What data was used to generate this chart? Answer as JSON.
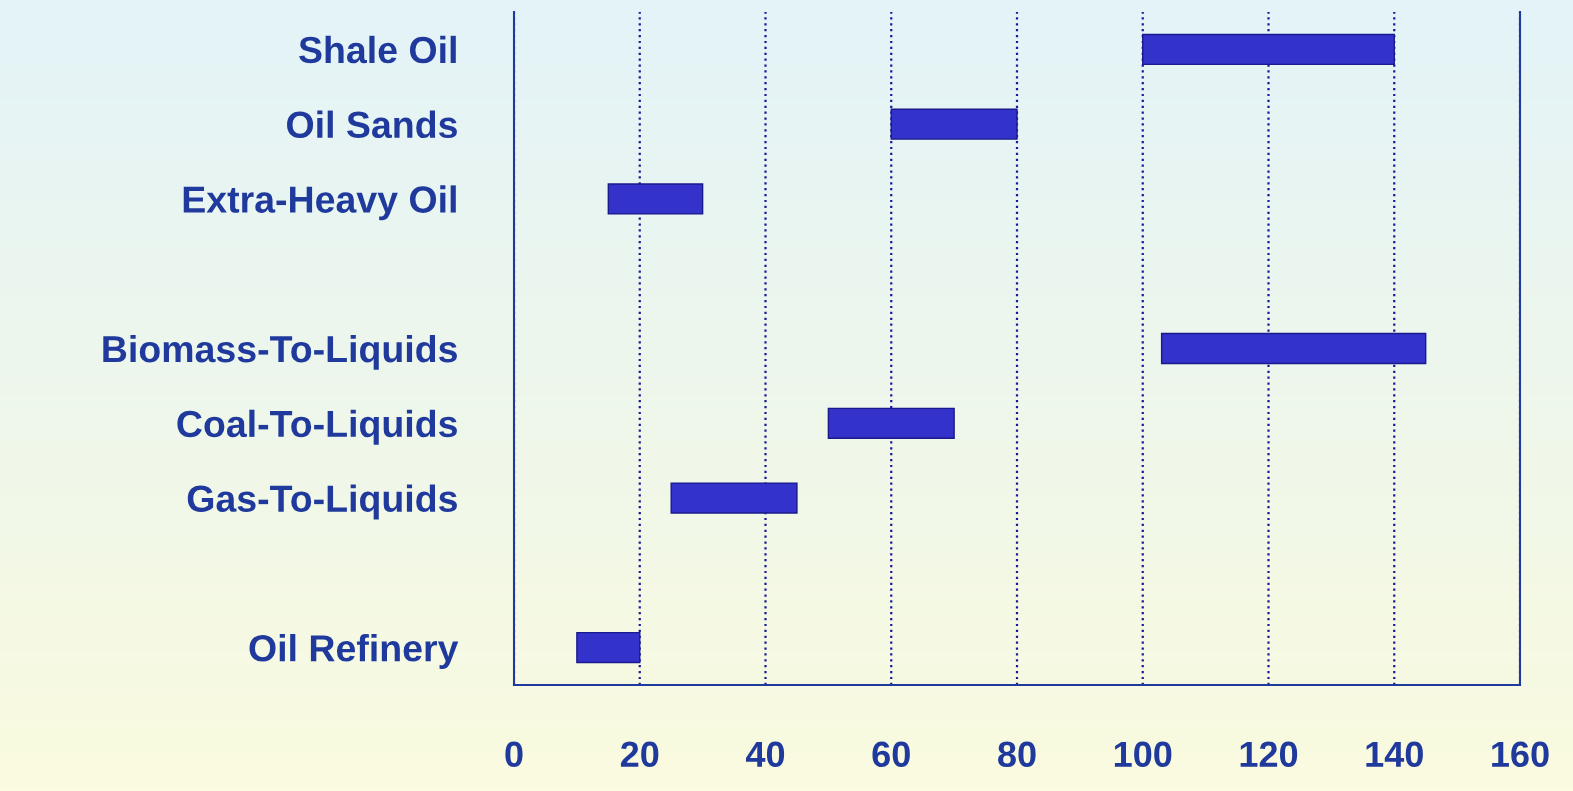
{
  "chart_data": {
    "type": "bar",
    "orientation": "horizontal",
    "categories": [
      "Shale Oil",
      "Oil Sands",
      "Extra-Heavy Oil",
      null,
      "Biomass-To-Liquids",
      "Coal-To-Liquids",
      "Gas-To-Liquids",
      null,
      "Oil Refinery"
    ],
    "base": [
      100,
      60,
      15,
      null,
      103,
      50,
      25,
      null,
      10
    ],
    "values": [
      40,
      20,
      15,
      null,
      42,
      20,
      20,
      null,
      10
    ],
    "color": "#3333cc",
    "xlim": [
      0,
      160
    ],
    "xticks": [
      0,
      20,
      40,
      60,
      80,
      100,
      120,
      140,
      160
    ],
    "grid": "x",
    "line_style": "dotted"
  }
}
